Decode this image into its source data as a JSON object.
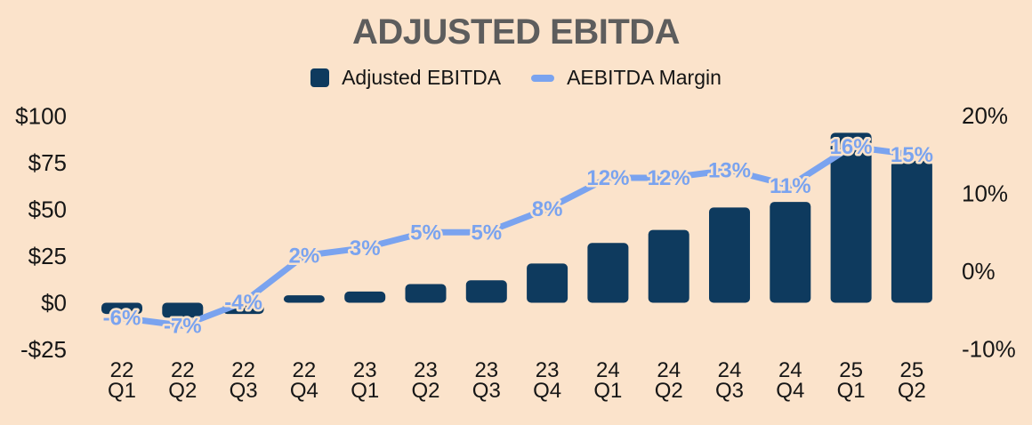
{
  "page": {
    "background": "#fbe3cb"
  },
  "chart_data": {
    "type": "combo",
    "title": "ADJUSTED EBITDA",
    "legend_position": "top",
    "grid": false,
    "categories": [
      "22 Q1",
      "22 Q2",
      "22 Q3",
      "22 Q4",
      "23 Q1",
      "23 Q2",
      "23 Q3",
      "23 Q4",
      "24 Q1",
      "24 Q2",
      "24 Q3",
      "24 Q4",
      "25 Q1",
      "25 Q2"
    ],
    "series": [
      {
        "name": "Adjusted EBITDA",
        "type": "bar",
        "axis": "left",
        "color": "#0e3a5e",
        "values": [
          -6,
          -8,
          -6,
          4,
          6,
          10,
          12,
          21,
          32,
          39,
          51,
          54,
          91,
          76
        ]
      },
      {
        "name": "AEBITDA Margin",
        "type": "line",
        "axis": "right",
        "color": "#7aa3ef",
        "values": [
          -6,
          -7,
          -4,
          2,
          3,
          5,
          5,
          8,
          12,
          12,
          13,
          11,
          16,
          15
        ],
        "point_labels": [
          "-6%",
          "-7%",
          "-4%",
          "2%",
          "3%",
          "5%",
          "5%",
          "8%",
          "12%",
          "12%",
          "13%",
          "11%",
          "16%",
          "15%"
        ]
      }
    ],
    "left_axis": {
      "tick_labels": [
        "$100",
        "$75",
        "$50",
        "$25",
        "$0",
        "-$25"
      ],
      "tick_values": [
        100,
        75,
        50,
        25,
        0,
        -25
      ],
      "range": [
        -25,
        100
      ]
    },
    "right_axis": {
      "tick_labels": [
        "20%",
        "10%",
        "0%",
        "-10%"
      ],
      "tick_values": [
        20,
        10,
        0,
        -10
      ],
      "range": [
        -10,
        20
      ]
    }
  }
}
